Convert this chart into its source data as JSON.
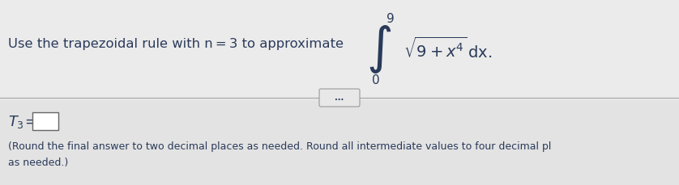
{
  "bg_top": "#e8e8e8",
  "bg_bottom": "#e0e0e0",
  "bg_overall": "#d8d8d8",
  "divider_color": "#aaaaaa",
  "font_color": "#2a2a2a",
  "font_color_blue": "#2a3a5a",
  "top_text": "Use the trapezoidal rule with n = 3 to approximate",
  "integral_upper": "9",
  "integral_lower": "0",
  "dots_text": "...",
  "bottom_text1": "(Round the final answer to two decimal places as needed. Round all intermediate values to four decimal pl",
  "bottom_text2": "as needed.)",
  "font_size_main": 11.8,
  "font_size_integral": 13,
  "font_size_small": 10
}
